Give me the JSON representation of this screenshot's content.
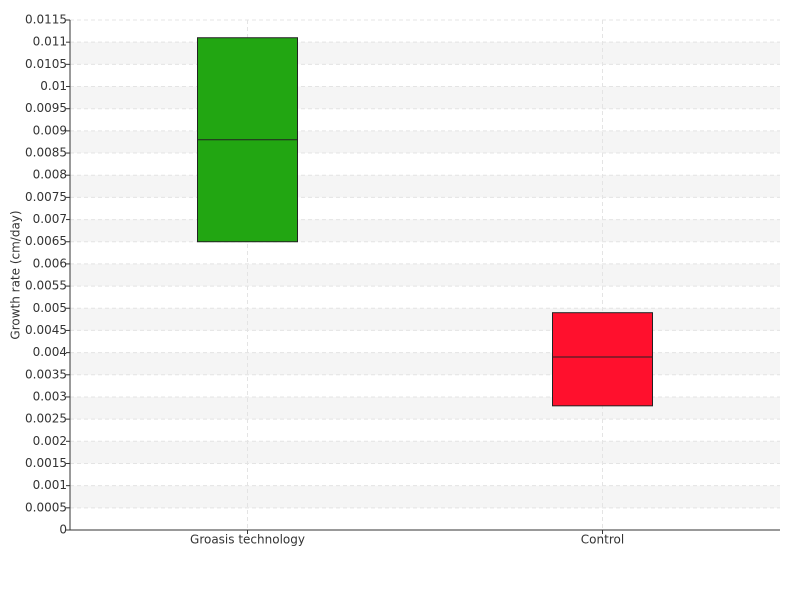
{
  "chart_data": {
    "type": "box",
    "y_label": "Growth rate (cm/day)",
    "categories": [
      "Groasis technology",
      "Control"
    ],
    "boxes": [
      {
        "low": 0.0065,
        "median": 0.0088,
        "high": 0.0111,
        "color": "#22a612"
      },
      {
        "low": 0.0028,
        "median": 0.0039,
        "high": 0.0049,
        "color": "#ff102d"
      }
    ],
    "ylim": [
      0,
      0.0115
    ],
    "yticks": [
      0,
      0.0005,
      0.001,
      0.0015,
      0.002,
      0.0025,
      0.003,
      0.0035,
      0.004,
      0.0045,
      0.005,
      0.0055,
      0.006,
      0.0065,
      0.007,
      0.0075,
      0.008,
      0.0085,
      0.009,
      0.0095,
      0.01,
      0.0105,
      0.011,
      0.0115
    ],
    "grid": true
  }
}
